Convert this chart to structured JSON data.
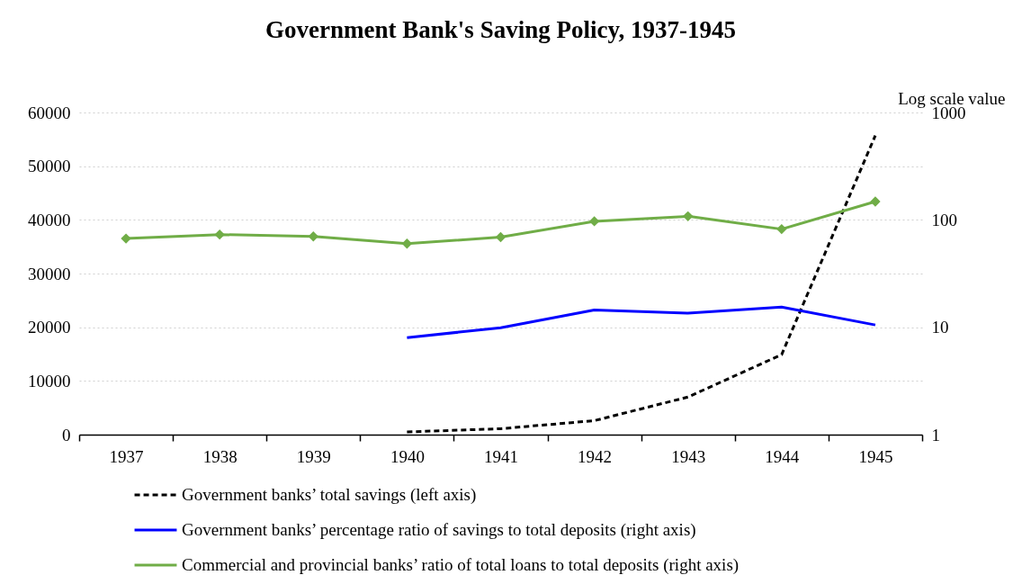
{
  "chart_data": {
    "type": "line",
    "title": "Government Bank's Saving Policy, 1937-1945",
    "y2label": "Log scale value",
    "categories": [
      "1937",
      "1938",
      "1939",
      "1940",
      "1941",
      "1942",
      "1943",
      "1944",
      "1945"
    ],
    "series": [
      {
        "name": "Government banks’ total savings (left axis)",
        "color": "#000000",
        "line_style": "dashed",
        "values": [
          null,
          null,
          null,
          500,
          1100,
          2600,
          7000,
          14900,
          55700
        ]
      },
      {
        "name": "Government banks’ percentage ratio of savings to total deposits (right axis)",
        "color": "#0000ff",
        "axis": "y2",
        "line_style": "solid",
        "values": [
          null,
          null,
          null,
          8.0,
          9.9,
          14.5,
          13.5,
          15.4,
          10.5
        ]
      },
      {
        "name": "Commercial and provincial banks’ ratio of total loans to total deposits (right axis)",
        "color": "#70ad47",
        "axis": "y2",
        "line_style": "solid",
        "marker": "diamond",
        "values": [
          67,
          73,
          70,
          60,
          69,
          97,
          108,
          82,
          148
        ]
      }
    ],
    "ylim": [
      0,
      60000
    ],
    "yticks": [
      0,
      10000,
      20000,
      30000,
      40000,
      50000,
      60000
    ],
    "y2lim": [
      1,
      1000
    ],
    "y2ticks": [
      1,
      10,
      100,
      1000
    ],
    "log": "y2",
    "grid": "y",
    "legend": "bottom"
  }
}
